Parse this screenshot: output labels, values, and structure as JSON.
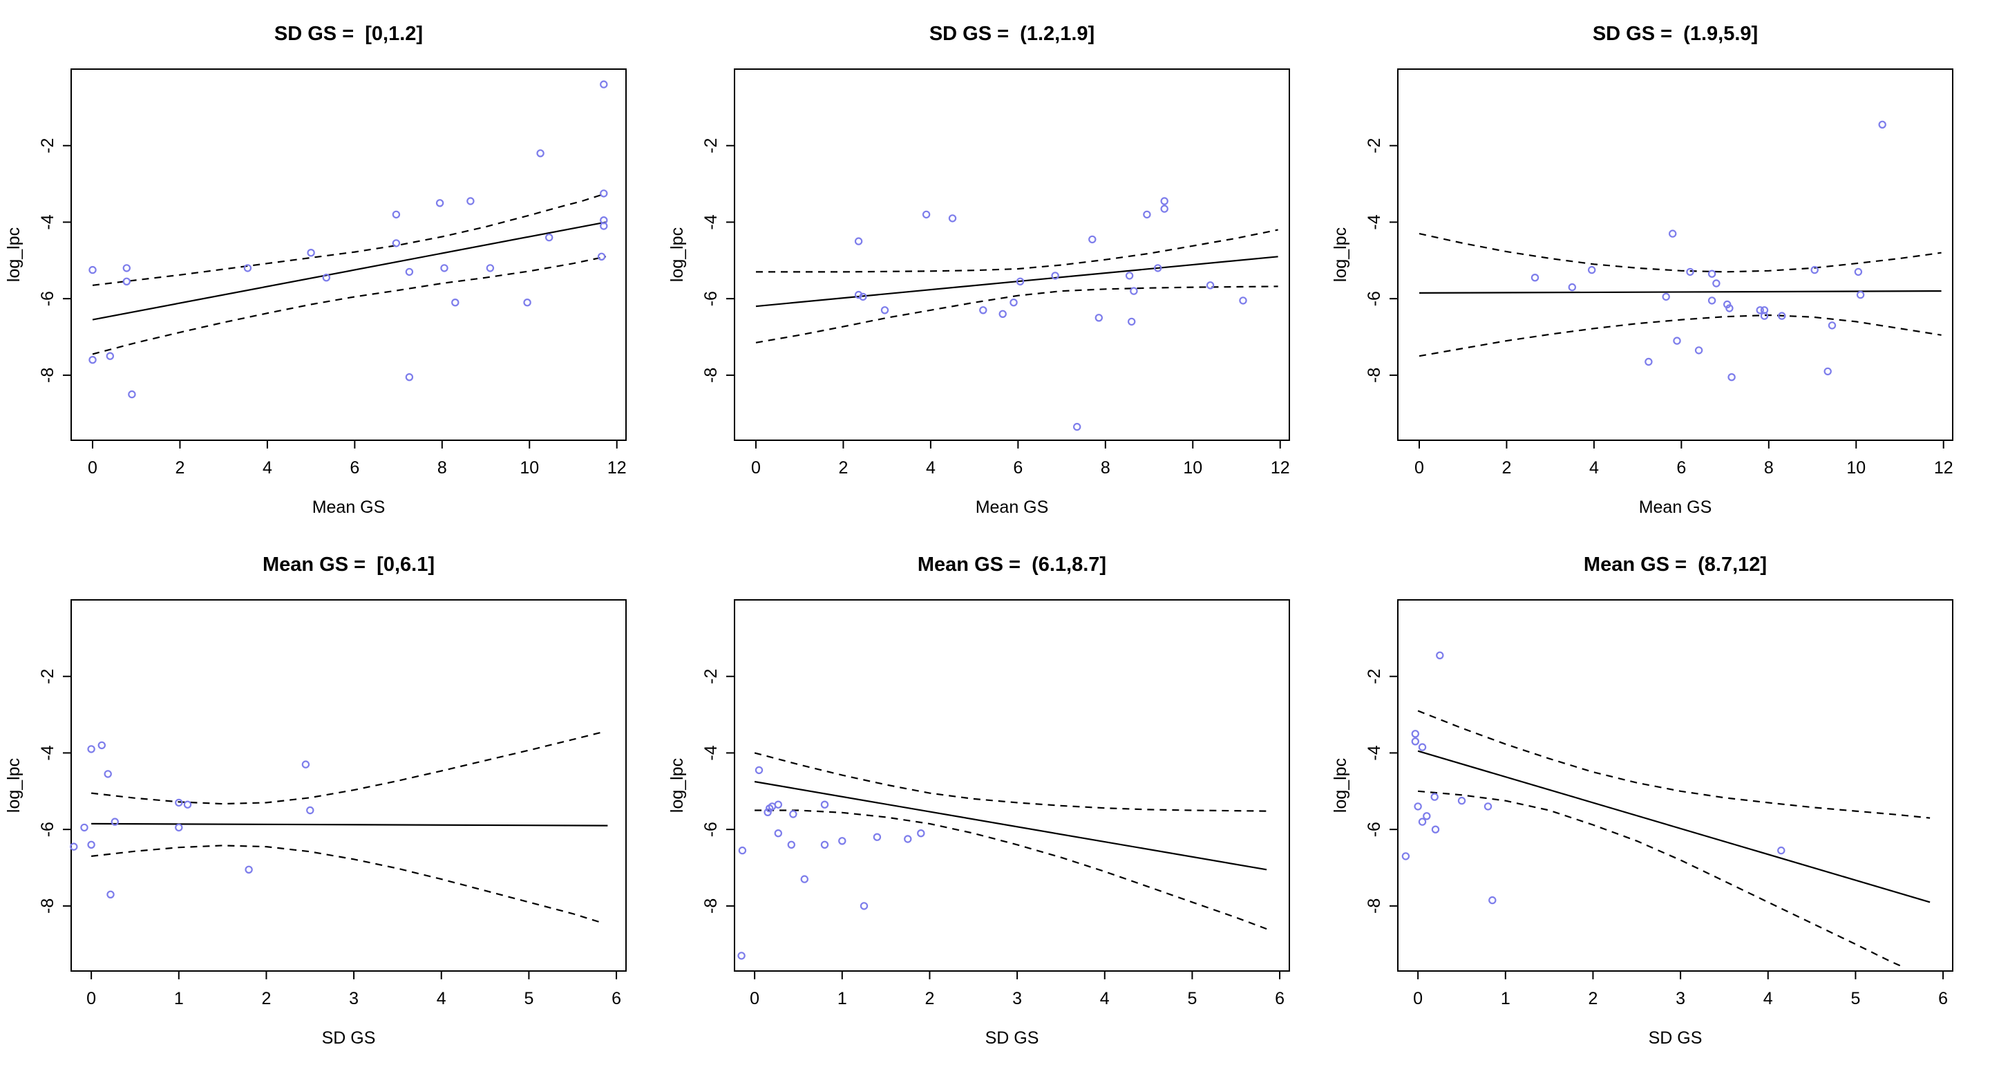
{
  "figure": {
    "background": "#ffffff",
    "point_color": "#7D7DEB",
    "line_color": "#000000",
    "band_style": "dashed",
    "fit_style": "solid"
  },
  "chart_data": [
    {
      "type": "scatter",
      "title": "SD GS =  [0,1.2]",
      "xlabel": "Mean GS",
      "ylabel": "log_lpc",
      "xlim": [
        -0.49,
        12.21
      ],
      "ylim": [
        -9.7,
        0
      ],
      "xticks": [
        0,
        2,
        4,
        6,
        8,
        10,
        12
      ],
      "yticks": [
        -8,
        -6,
        -4,
        -2
      ],
      "grid": false,
      "legend": null,
      "points": [
        [
          0,
          -5.25
        ],
        [
          0,
          -7.6
        ],
        [
          0.4,
          -7.5
        ],
        [
          0.78,
          -5.2
        ],
        [
          0.78,
          -5.55
        ],
        [
          0.9,
          -8.5
        ],
        [
          3.55,
          -5.2
        ],
        [
          5.0,
          -4.8
        ],
        [
          5.35,
          -5.45
        ],
        [
          6.95,
          -3.8
        ],
        [
          6.95,
          -4.55
        ],
        [
          7.25,
          -5.3
        ],
        [
          7.25,
          -8.05
        ],
        [
          7.95,
          -3.5
        ],
        [
          8.05,
          -5.2
        ],
        [
          8.3,
          -6.1
        ],
        [
          8.65,
          -3.45
        ],
        [
          9.1,
          -5.2
        ],
        [
          9.95,
          -6.1
        ],
        [
          10.25,
          -2.2
        ],
        [
          10.45,
          -4.4
        ],
        [
          11.65,
          -4.9
        ],
        [
          11.7,
          -0.4
        ],
        [
          11.7,
          -3.25
        ],
        [
          11.7,
          -3.95
        ],
        [
          11.7,
          -4.1
        ]
      ],
      "fit_line": [
        [
          0,
          -6.55
        ],
        [
          11.75,
          -4.0
        ]
      ],
      "upper_band": [
        [
          0,
          -5.65
        ],
        [
          2,
          -5.38
        ],
        [
          4,
          -5.08
        ],
        [
          6,
          -4.78
        ],
        [
          7,
          -4.6
        ],
        [
          8,
          -4.38
        ],
        [
          9,
          -4.12
        ],
        [
          10,
          -3.82
        ],
        [
          10.7,
          -3.6
        ],
        [
          11.2,
          -3.45
        ],
        [
          11.75,
          -3.25
        ]
      ],
      "lower_band": [
        [
          0,
          -7.45
        ],
        [
          1,
          -7.15
        ],
        [
          2,
          -6.88
        ],
        [
          3,
          -6.62
        ],
        [
          4,
          -6.38
        ],
        [
          5,
          -6.15
        ],
        [
          6,
          -5.95
        ],
        [
          7,
          -5.78
        ],
        [
          8,
          -5.6
        ],
        [
          9,
          -5.45
        ],
        [
          10,
          -5.28
        ],
        [
          11,
          -5.08
        ],
        [
          11.75,
          -4.9
        ]
      ]
    },
    {
      "type": "scatter",
      "title": "SD GS =  (1.2,1.9]",
      "xlabel": "Mean GS",
      "ylabel": "log_lpc",
      "xlim": [
        -0.49,
        12.21
      ],
      "ylim": [
        -9.7,
        0
      ],
      "xticks": [
        0,
        2,
        4,
        6,
        8,
        10,
        12
      ],
      "yticks": [
        -8,
        -6,
        -4,
        -2
      ],
      "grid": false,
      "legend": null,
      "points": [
        [
          2.35,
          -4.5
        ],
        [
          2.35,
          -5.9
        ],
        [
          2.45,
          -5.95
        ],
        [
          2.95,
          -6.3
        ],
        [
          3.9,
          -3.8
        ],
        [
          4.5,
          -3.9
        ],
        [
          5.2,
          -6.3
        ],
        [
          5.65,
          -6.4
        ],
        [
          5.9,
          -6.1
        ],
        [
          6.05,
          -5.55
        ],
        [
          6.85,
          -5.4
        ],
        [
          7.35,
          -9.35
        ],
        [
          7.7,
          -4.45
        ],
        [
          7.85,
          -6.5
        ],
        [
          8.55,
          -5.4
        ],
        [
          8.6,
          -6.6
        ],
        [
          8.65,
          -5.8
        ],
        [
          8.95,
          -3.8
        ],
        [
          9.2,
          -5.2
        ],
        [
          9.35,
          -3.45
        ],
        [
          9.35,
          -3.65
        ],
        [
          10.4,
          -5.65
        ],
        [
          11.15,
          -6.05
        ]
      ],
      "fit_line": [
        [
          0,
          -6.2
        ],
        [
          11.95,
          -4.9
        ]
      ],
      "upper_band": [
        [
          0,
          -5.3
        ],
        [
          2,
          -5.3
        ],
        [
          4,
          -5.28
        ],
        [
          5,
          -5.26
        ],
        [
          6,
          -5.22
        ],
        [
          7,
          -5.12
        ],
        [
          8,
          -4.98
        ],
        [
          9,
          -4.82
        ],
        [
          10,
          -4.62
        ],
        [
          11,
          -4.42
        ],
        [
          11.95,
          -4.2
        ]
      ],
      "lower_band": [
        [
          0,
          -7.15
        ],
        [
          1,
          -6.95
        ],
        [
          2,
          -6.73
        ],
        [
          3,
          -6.5
        ],
        [
          4,
          -6.3
        ],
        [
          5,
          -6.1
        ],
        [
          6,
          -5.92
        ],
        [
          7,
          -5.8
        ],
        [
          8,
          -5.75
        ],
        [
          9,
          -5.72
        ],
        [
          10,
          -5.7
        ],
        [
          11,
          -5.69
        ],
        [
          11.95,
          -5.68
        ]
      ]
    },
    {
      "type": "scatter",
      "title": "SD GS =  (1.9,5.9]",
      "xlabel": "Mean GS",
      "ylabel": "log_lpc",
      "xlim": [
        -0.49,
        12.21
      ],
      "ylim": [
        -9.7,
        0
      ],
      "xticks": [
        0,
        2,
        4,
        6,
        8,
        10,
        12
      ],
      "yticks": [
        -8,
        -6,
        -4,
        -2
      ],
      "grid": false,
      "legend": null,
      "points": [
        [
          2.65,
          -5.45
        ],
        [
          3.5,
          -5.7
        ],
        [
          3.95,
          -5.25
        ],
        [
          5.25,
          -7.65
        ],
        [
          5.65,
          -5.95
        ],
        [
          5.8,
          -4.3
        ],
        [
          5.9,
          -7.1
        ],
        [
          6.2,
          -5.3
        ],
        [
          6.4,
          -7.35
        ],
        [
          6.7,
          -5.35
        ],
        [
          6.7,
          -6.05
        ],
        [
          6.8,
          -5.6
        ],
        [
          7.05,
          -6.15
        ],
        [
          7.1,
          -6.25
        ],
        [
          7.15,
          -8.05
        ],
        [
          7.8,
          -6.3
        ],
        [
          7.9,
          -6.3
        ],
        [
          7.9,
          -6.45
        ],
        [
          8.3,
          -6.45
        ],
        [
          9.05,
          -5.25
        ],
        [
          9.35,
          -7.9
        ],
        [
          9.45,
          -6.7
        ],
        [
          10.05,
          -5.3
        ],
        [
          10.1,
          -5.9
        ],
        [
          10.6,
          -1.45
        ]
      ],
      "fit_line": [
        [
          0,
          -5.85
        ],
        [
          11.95,
          -5.8
        ]
      ],
      "upper_band": [
        [
          0,
          -4.3
        ],
        [
          1,
          -4.55
        ],
        [
          2,
          -4.77
        ],
        [
          3,
          -4.95
        ],
        [
          4,
          -5.1
        ],
        [
          5,
          -5.2
        ],
        [
          6,
          -5.27
        ],
        [
          7,
          -5.3
        ],
        [
          8,
          -5.27
        ],
        [
          9,
          -5.2
        ],
        [
          10,
          -5.08
        ],
        [
          11,
          -4.95
        ],
        [
          11.95,
          -4.8
        ]
      ],
      "lower_band": [
        [
          0,
          -7.5
        ],
        [
          1,
          -7.3
        ],
        [
          2,
          -7.1
        ],
        [
          3,
          -6.93
        ],
        [
          4,
          -6.78
        ],
        [
          5,
          -6.65
        ],
        [
          6,
          -6.55
        ],
        [
          7,
          -6.47
        ],
        [
          8,
          -6.43
        ],
        [
          9,
          -6.48
        ],
        [
          10,
          -6.6
        ],
        [
          11,
          -6.78
        ],
        [
          11.95,
          -6.95
        ]
      ]
    },
    {
      "type": "scatter",
      "title": "Mean GS =  [0,6.1]",
      "xlabel": "SD GS",
      "ylabel": "log_lpc",
      "xlim": [
        -0.23,
        6.11
      ],
      "ylim": [
        -9.7,
        0
      ],
      "xticks": [
        0,
        1,
        2,
        3,
        4,
        5,
        6
      ],
      "yticks": [
        -8,
        -6,
        -4,
        -2
      ],
      "grid": false,
      "legend": null,
      "points": [
        [
          -0.2,
          -6.45
        ],
        [
          -0.08,
          -5.95
        ],
        [
          0,
          -3.9
        ],
        [
          0,
          -6.4
        ],
        [
          0.12,
          -3.8
        ],
        [
          0.19,
          -4.55
        ],
        [
          0.22,
          -7.7
        ],
        [
          0.27,
          -5.8
        ],
        [
          1.0,
          -5.3
        ],
        [
          1.1,
          -5.35
        ],
        [
          1.0,
          -5.95
        ],
        [
          1.8,
          -7.05
        ],
        [
          2.45,
          -4.3
        ],
        [
          2.5,
          -5.5
        ]
      ],
      "fit_line": [
        [
          0,
          -5.85
        ],
        [
          5.9,
          -5.9
        ]
      ],
      "upper_band": [
        [
          0,
          -5.05
        ],
        [
          0.5,
          -5.18
        ],
        [
          1,
          -5.28
        ],
        [
          1.5,
          -5.33
        ],
        [
          2,
          -5.3
        ],
        [
          2.5,
          -5.17
        ],
        [
          3,
          -4.97
        ],
        [
          3.5,
          -4.73
        ],
        [
          4,
          -4.47
        ],
        [
          4.5,
          -4.2
        ],
        [
          5,
          -3.93
        ],
        [
          5.5,
          -3.65
        ],
        [
          5.85,
          -3.45
        ]
      ],
      "lower_band": [
        [
          0,
          -6.7
        ],
        [
          0.5,
          -6.57
        ],
        [
          1,
          -6.47
        ],
        [
          1.5,
          -6.42
        ],
        [
          2,
          -6.45
        ],
        [
          2.5,
          -6.58
        ],
        [
          3,
          -6.78
        ],
        [
          3.5,
          -7.02
        ],
        [
          4,
          -7.3
        ],
        [
          4.5,
          -7.6
        ],
        [
          5,
          -7.9
        ],
        [
          5.5,
          -8.2
        ],
        [
          5.85,
          -8.45
        ]
      ]
    },
    {
      "type": "scatter",
      "title": "Mean GS =  (6.1,8.7]",
      "xlabel": "SD GS",
      "ylabel": "log_lpc",
      "xlim": [
        -0.23,
        6.11
      ],
      "ylim": [
        -9.7,
        0
      ],
      "xticks": [
        0,
        1,
        2,
        3,
        4,
        5,
        6
      ],
      "yticks": [
        -8,
        -6,
        -4,
        -2
      ],
      "grid": false,
      "legend": null,
      "points": [
        [
          -0.15,
          -9.3
        ],
        [
          -0.14,
          -6.55
        ],
        [
          0.05,
          -4.45
        ],
        [
          0.15,
          -5.55
        ],
        [
          0.17,
          -5.45
        ],
        [
          0.2,
          -5.4
        ],
        [
          0.27,
          -5.35
        ],
        [
          0.27,
          -6.1
        ],
        [
          0.42,
          -6.4
        ],
        [
          0.44,
          -5.6
        ],
        [
          0.57,
          -7.3
        ],
        [
          0.8,
          -5.35
        ],
        [
          0.8,
          -6.4
        ],
        [
          1.0,
          -6.3
        ],
        [
          1.25,
          -8.0
        ],
        [
          1.4,
          -6.2
        ],
        [
          1.75,
          -6.25
        ],
        [
          1.9,
          -6.1
        ]
      ],
      "fit_line": [
        [
          0,
          -4.75
        ],
        [
          5.85,
          -7.05
        ]
      ],
      "upper_band": [
        [
          0,
          -4.0
        ],
        [
          0.5,
          -4.3
        ],
        [
          1,
          -4.58
        ],
        [
          1.5,
          -4.83
        ],
        [
          2,
          -5.05
        ],
        [
          2.5,
          -5.2
        ],
        [
          3,
          -5.3
        ],
        [
          3.5,
          -5.38
        ],
        [
          4,
          -5.44
        ],
        [
          4.5,
          -5.48
        ],
        [
          5,
          -5.5
        ],
        [
          5.85,
          -5.52
        ]
      ],
      "lower_band": [
        [
          0,
          -5.5
        ],
        [
          0.5,
          -5.5
        ],
        [
          1,
          -5.56
        ],
        [
          1.5,
          -5.68
        ],
        [
          2,
          -5.85
        ],
        [
          2.5,
          -6.1
        ],
        [
          3,
          -6.4
        ],
        [
          3.5,
          -6.73
        ],
        [
          4,
          -7.1
        ],
        [
          4.5,
          -7.5
        ],
        [
          5,
          -7.9
        ],
        [
          5.5,
          -8.3
        ],
        [
          5.85,
          -8.6
        ]
      ]
    },
    {
      "type": "scatter",
      "title": "Mean GS =  (8.7,12]",
      "xlabel": "SD GS",
      "ylabel": "log_lpc",
      "xlim": [
        -0.23,
        6.11
      ],
      "ylim": [
        -9.7,
        0
      ],
      "xticks": [
        0,
        1,
        2,
        3,
        4,
        5,
        6
      ],
      "yticks": [
        -8,
        -6,
        -4,
        -2
      ],
      "grid": false,
      "legend": null,
      "points": [
        [
          -0.14,
          -6.7
        ],
        [
          -0.03,
          -3.5
        ],
        [
          -0.03,
          -3.7
        ],
        [
          0.05,
          -3.85
        ],
        [
          0,
          -5.4
        ],
        [
          0.05,
          -5.8
        ],
        [
          0.1,
          -5.65
        ],
        [
          0.19,
          -5.15
        ],
        [
          0.2,
          -6.0
        ],
        [
          0.25,
          -1.45
        ],
        [
          0.5,
          -5.25
        ],
        [
          0.8,
          -5.4
        ],
        [
          0.85,
          -7.85
        ],
        [
          4.15,
          -6.55
        ]
      ],
      "fit_line": [
        [
          0,
          -3.95
        ],
        [
          5.85,
          -7.9
        ]
      ],
      "upper_band": [
        [
          0,
          -2.9
        ],
        [
          0.5,
          -3.35
        ],
        [
          1,
          -3.77
        ],
        [
          1.5,
          -4.15
        ],
        [
          2,
          -4.5
        ],
        [
          2.5,
          -4.78
        ],
        [
          3,
          -5.0
        ],
        [
          3.5,
          -5.17
        ],
        [
          4,
          -5.3
        ],
        [
          4.5,
          -5.42
        ],
        [
          5,
          -5.52
        ],
        [
          5.5,
          -5.62
        ],
        [
          5.85,
          -5.7
        ]
      ],
      "lower_band": [
        [
          0,
          -5.0
        ],
        [
          0.5,
          -5.1
        ],
        [
          1,
          -5.25
        ],
        [
          1.5,
          -5.5
        ],
        [
          2,
          -5.88
        ],
        [
          2.5,
          -6.3
        ],
        [
          3,
          -6.8
        ],
        [
          3.5,
          -7.35
        ],
        [
          4,
          -7.9
        ],
        [
          4.5,
          -8.45
        ],
        [
          5,
          -9.0
        ],
        [
          5.4,
          -9.45
        ],
        [
          5.55,
          -9.6
        ]
      ]
    }
  ]
}
